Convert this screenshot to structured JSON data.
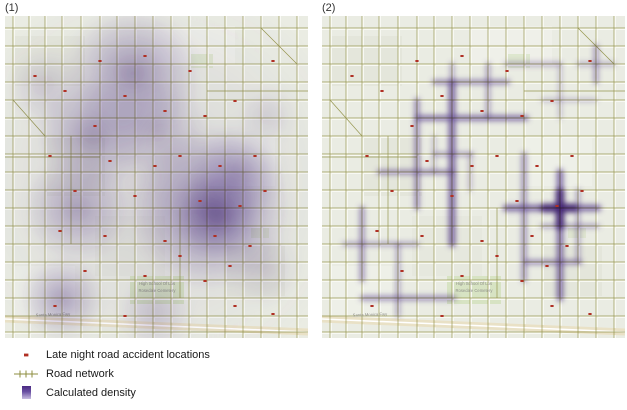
{
  "panels": [
    {
      "label": "(1)",
      "type": "planar kernel density"
    },
    {
      "label": "(2)",
      "type": "network kernel density"
    }
  ],
  "legend": {
    "items": [
      {
        "label": "Late night road accident locations",
        "swatch": "accident-marker"
      },
      {
        "label": "Road network",
        "swatch": "road-line"
      },
      {
        "label": "Calculated density",
        "swatch": "density-gradient"
      }
    ]
  },
  "map_style": {
    "background": "#eaece3",
    "street_color": "#f8f9f4",
    "road_network_color": "#8d8d3f",
    "density_color_dark": "#46267e",
    "density_color_mid": "#6a51a3",
    "accident_color": "#b03024",
    "park_color": "#d7e3c3",
    "freeway_color": "#e9e1c6",
    "label_color": "#90918a"
  },
  "map_annotations": {
    "school": "High School Of Los",
    "cemetery": "Rosedale Cemetery",
    "freeway": "Santa Monica Fwy"
  }
}
